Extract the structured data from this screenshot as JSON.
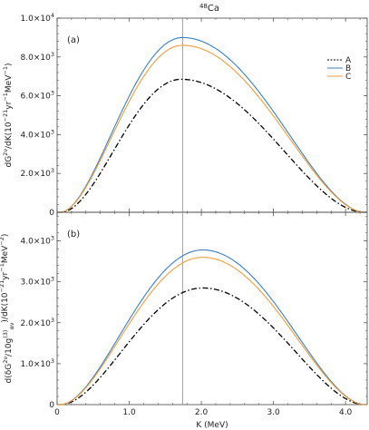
{
  "figure": {
    "title_prefix": "48",
    "title_main": "Ca"
  },
  "chart_data": [
    {
      "type": "line",
      "panel_label": "(a)",
      "ylabel_parts": [
        "dG",
        "2ν",
        "/dK(10",
        "−21",
        "yr",
        "−1",
        "MeV",
        "−1",
        ")"
      ],
      "xlim": [
        0,
        4.3
      ],
      "ylim": [
        0,
        10000
      ],
      "xticks": [
        0,
        1.0,
        2.0,
        3.0,
        4.0
      ],
      "xtick_labels": [
        "0",
        "1.0",
        "2.0",
        "3.0",
        "4.0"
      ],
      "yticks": [
        0,
        2000,
        4000,
        6000,
        8000,
        10000
      ],
      "ytick_labels": [
        {
          "base": "0",
          "exp": ""
        },
        {
          "base": "2.0×10",
          "exp": "3"
        },
        {
          "base": "4.0×10",
          "exp": "3"
        },
        {
          "base": "6.0×10",
          "exp": "3"
        },
        {
          "base": "8.0×10",
          "exp": "3"
        },
        {
          "base": "1.0×10",
          "exp": "4"
        }
      ],
      "vline_x": 1.74,
      "legend": [
        "A",
        "B",
        "C"
      ],
      "series": [
        {
          "name": "A",
          "color": "#000000",
          "dash": "dashdot",
          "peak_x": 1.72,
          "peak_y": 6850,
          "width": 0.98
        },
        {
          "name": "B",
          "color": "#3b7fc4",
          "dash": "solid",
          "peak_x": 1.74,
          "peak_y": 9000,
          "width": 0.92
        },
        {
          "name": "C",
          "color": "#f09d3c",
          "dash": "solid",
          "peak_x": 1.74,
          "peak_y": 8600,
          "width": 0.92
        }
      ]
    },
    {
      "type": "line",
      "panel_label": "(b)",
      "ylabel_parts": [
        "d(δG",
        "2ν",
        "/10g",
        "(3)",
        "αν",
        ")/dK(10",
        "−21",
        "yr",
        "−1",
        "MeV",
        "−2",
        ")"
      ],
      "xlim": [
        0,
        4.3
      ],
      "ylim": [
        0,
        4700
      ],
      "xticks": [
        0,
        1.0,
        2.0,
        3.0,
        4.0
      ],
      "xtick_labels": [
        "0",
        "1.0",
        "2.0",
        "3.0",
        "4.0"
      ],
      "xlabel": "K (MeV)",
      "yticks": [
        0,
        1000,
        2000,
        3000,
        4000
      ],
      "ytick_labels": [
        {
          "base": "0",
          "exp": ""
        },
        {
          "base": "1.0×10",
          "exp": "3"
        },
        {
          "base": "2.0×10",
          "exp": "3"
        },
        {
          "base": "3.0×10",
          "exp": "3"
        },
        {
          "base": "4.0×10",
          "exp": "3"
        }
      ],
      "vline_x": 1.74,
      "series": [
        {
          "name": "A",
          "color": "#000000",
          "dash": "dashdot",
          "peak_x": 2.02,
          "peak_y": 2850,
          "width": 0.95
        },
        {
          "name": "B",
          "color": "#3b7fc4",
          "dash": "solid",
          "peak_x": 2.02,
          "peak_y": 3780,
          "width": 0.92
        },
        {
          "name": "C",
          "color": "#f09d3c",
          "dash": "solid",
          "peak_x": 2.02,
          "peak_y": 3600,
          "width": 0.92
        }
      ]
    }
  ]
}
